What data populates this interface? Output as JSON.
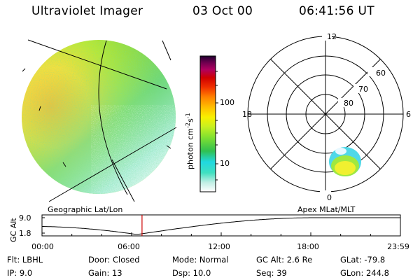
{
  "header": {
    "instrument": "Ultraviolet Imager",
    "date": "03 Oct 00",
    "time": "06:41:56 UT"
  },
  "imager_panel": {
    "caption": "Geographic Lat/Lon"
  },
  "colorbar": {
    "unit_main": "photon cm",
    "unit_exp1": "-2",
    "unit_s": "s",
    "unit_exp2": "-1",
    "ticks": [
      "100",
      "10"
    ],
    "gradient": [
      "#ffffff",
      "#bfeee4",
      "#40e0c0",
      "#20d8e0",
      "#30c050",
      "#80e030",
      "#c8f020",
      "#f8f000",
      "#ffc000",
      "#ff8000",
      "#f03000",
      "#d00000",
      "#b00060",
      "#700050",
      "#200030"
    ]
  },
  "polar_plot": {
    "caption": "Apex MLat/MLT",
    "mlt_labels": {
      "top": "12",
      "left": "18",
      "right": "6",
      "bottom": "0"
    },
    "mlat_labels": [
      "60",
      "70",
      "80"
    ]
  },
  "altitude_plot": {
    "ylabel": "GC Alt",
    "ytick_top": "9.0",
    "ytick_bottom": "1.8",
    "time_ticks": [
      "00:00",
      "06:00",
      "12:00",
      "18:00",
      "23:59"
    ],
    "marker_time": "06:41:56"
  },
  "status": {
    "flt": "Flt:  LBHL",
    "ip": "IP:  9.0",
    "door": "Door:  Closed",
    "gain": "Gain:  13",
    "mode": "Mode:  Normal",
    "dsp": "Dsp:     10.0",
    "gcalt": "GC Alt:  2.6 Re",
    "seq": "Seq:  39",
    "glat": "GLat:  -79.8",
    "glon": "GLon:  244.8"
  },
  "colors": {
    "marker": "#cc0000",
    "aurora_blue": "#40d0e0",
    "aurora_yellow": "#f0f030"
  }
}
